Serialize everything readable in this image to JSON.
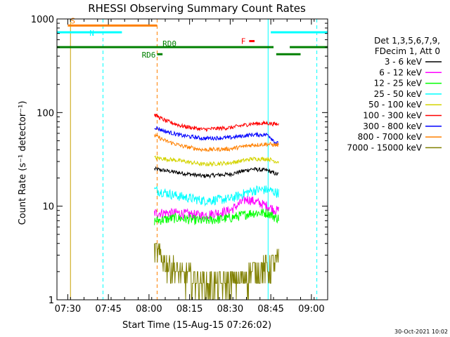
{
  "chart_data": {
    "type": "line",
    "title": "RHESSI Observing Summary Count Rates",
    "xlabel": "Start Time (15-Aug-15 07:26:02)",
    "ylabel": "Count Rate (s⁻¹ detector⁻¹)",
    "yscale": "log",
    "ylim": [
      1,
      1000
    ],
    "xlim": [
      "07:26",
      "09:06"
    ],
    "x_ticks": [
      "07:30",
      "07:45",
      "08:00",
      "08:15",
      "08:30",
      "08:45",
      "09:00"
    ],
    "y_ticks": [
      "1",
      "10",
      "100",
      "1000"
    ],
    "date_stamp": "30-Oct-2021 10:02",
    "legend": {
      "header": [
        "Det 1,3,5,6,7,9,",
        "FDecim 1, Att 0"
      ],
      "entries": [
        {
          "label": "3 - 6 keV",
          "color": "#000000"
        },
        {
          "label": "6 - 12 keV",
          "color": "#ff00ff"
        },
        {
          "label": "12 - 25 keV",
          "color": "#00ff00"
        },
        {
          "label": "25 - 50 keV",
          "color": "#00ffff"
        },
        {
          "label": "50 - 100 keV",
          "color": "#d4d400"
        },
        {
          "label": "100 - 300 keV",
          "color": "#ff0000"
        },
        {
          "label": "300 - 800 keV",
          "color": "#0000ff"
        },
        {
          "label": "800 - 7000 keV",
          "color": "#ff8000"
        },
        {
          "label": "7000 - 15000 keV",
          "color": "#808000"
        }
      ]
    },
    "data_window": {
      "start": "08:02",
      "end": "08:48"
    },
    "series": [
      {
        "name": "3 - 6 keV",
        "color": "#000000",
        "points": [
          [
            "08:02",
            25
          ],
          [
            "08:10",
            23
          ],
          [
            "08:20",
            21
          ],
          [
            "08:30",
            22
          ],
          [
            "08:38",
            25
          ],
          [
            "08:44",
            24
          ],
          [
            "08:47",
            22
          ]
        ]
      },
      {
        "name": "6 - 12 keV",
        "color": "#ff00ff",
        "points": [
          [
            "08:02",
            8.5
          ],
          [
            "08:10",
            8.5
          ],
          [
            "08:20",
            8.0
          ],
          [
            "08:30",
            9.0
          ],
          [
            "08:36",
            12
          ],
          [
            "08:40",
            11
          ],
          [
            "08:44",
            10
          ],
          [
            "08:47",
            9
          ]
        ]
      },
      {
        "name": "12 - 25 keV",
        "color": "#00ff00",
        "points": [
          [
            "08:02",
            7.0
          ],
          [
            "08:10",
            7.5
          ],
          [
            "08:20",
            7.0
          ],
          [
            "08:30",
            7.5
          ],
          [
            "08:38",
            8.5
          ],
          [
            "08:44",
            8.5
          ],
          [
            "08:47",
            7.5
          ]
        ]
      },
      {
        "name": "25 - 50 keV",
        "color": "#00ffff",
        "points": [
          [
            "08:02",
            15
          ],
          [
            "08:10",
            13
          ],
          [
            "08:20",
            11.5
          ],
          [
            "08:30",
            12
          ],
          [
            "08:36",
            14
          ],
          [
            "08:40",
            15
          ],
          [
            "08:44",
            15
          ],
          [
            "08:47",
            14
          ]
        ]
      },
      {
        "name": "50 - 100 keV",
        "color": "#d4d400",
        "points": [
          [
            "08:02",
            33
          ],
          [
            "08:10",
            31
          ],
          [
            "08:20",
            28
          ],
          [
            "08:30",
            29
          ],
          [
            "08:38",
            32
          ],
          [
            "08:44",
            32
          ],
          [
            "08:47",
            30
          ]
        ]
      },
      {
        "name": "100 - 300 keV",
        "color": "#ff0000",
        "points": [
          [
            "08:02",
            95
          ],
          [
            "08:06",
            82
          ],
          [
            "08:12",
            72
          ],
          [
            "08:20",
            66
          ],
          [
            "08:30",
            69
          ],
          [
            "08:38",
            76
          ],
          [
            "08:44",
            77
          ],
          [
            "08:47",
            75
          ]
        ]
      },
      {
        "name": "300 - 800 keV",
        "color": "#0000ff",
        "points": [
          [
            "08:02",
            70
          ],
          [
            "08:06",
            63
          ],
          [
            "08:12",
            57
          ],
          [
            "08:20",
            53
          ],
          [
            "08:30",
            54
          ],
          [
            "08:38",
            58
          ],
          [
            "08:44",
            58
          ],
          [
            "08:47",
            47
          ]
        ]
      },
      {
        "name": "800 - 7000 keV",
        "color": "#ff8000",
        "points": [
          [
            "08:02",
            57
          ],
          [
            "08:06",
            50
          ],
          [
            "08:12",
            44
          ],
          [
            "08:20",
            40
          ],
          [
            "08:30",
            41
          ],
          [
            "08:38",
            45
          ],
          [
            "08:44",
            46
          ],
          [
            "08:47",
            45
          ]
        ]
      },
      {
        "name": "7000 - 15000 keV",
        "color": "#808000",
        "points": [
          [
            "08:02",
            3.5
          ],
          [
            "08:06",
            2.5
          ],
          [
            "08:10",
            2.0
          ],
          [
            "08:20",
            1.5
          ],
          [
            "08:30",
            1.5
          ],
          [
            "08:40",
            2.0
          ],
          [
            "08:47",
            2.5
          ]
        ]
      }
    ],
    "flags": [
      {
        "label": "S",
        "color": "#ff8000",
        "start": "07:30",
        "end": "08:03",
        "level": 850
      },
      {
        "label": "N",
        "color": "#00ffff",
        "start": "07:26",
        "end": "07:50",
        "level": 720
      },
      {
        "label": "N",
        "color": "#00ffff",
        "start": "08:45",
        "end": "09:06",
        "level": 720
      },
      {
        "label": "F",
        "color": "#ff0000",
        "start": "08:37",
        "end": "08:39",
        "level": 580
      },
      {
        "label": "RD0",
        "color": "#008000",
        "start": "07:26",
        "end": "08:46",
        "level": 500
      },
      {
        "label": "RD0",
        "color": "#008000",
        "start": "08:52",
        "end": "09:06",
        "level": 500
      },
      {
        "label": "RD6",
        "color": "#008000",
        "start": "08:03",
        "end": "08:05",
        "level": 420
      },
      {
        "label": "RD6",
        "color": "#008000",
        "start": "08:47",
        "end": "08:56",
        "level": 420
      }
    ],
    "vertical_markers": [
      {
        "time": "07:31",
        "color": "#c8a000",
        "style": "solid"
      },
      {
        "time": "07:43",
        "color": "#00ffff",
        "style": "dashed"
      },
      {
        "time": "08:03",
        "color": "#ff8000",
        "style": "dashed"
      },
      {
        "time": "08:44",
        "color": "#00ffff",
        "style": "solid"
      },
      {
        "time": "09:02",
        "color": "#00ffff",
        "style": "dashed"
      }
    ]
  }
}
